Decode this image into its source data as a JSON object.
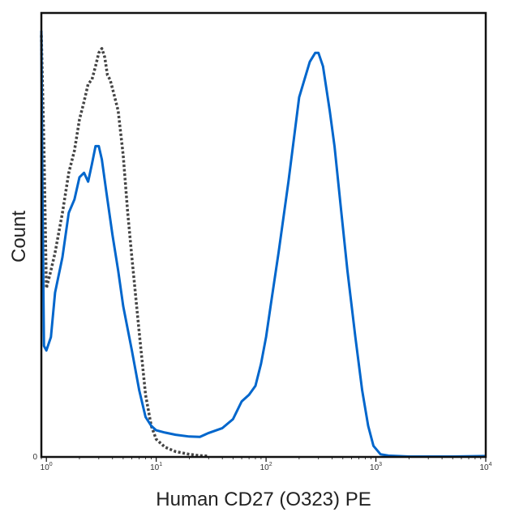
{
  "chart_data": {
    "type": "line",
    "title": "",
    "xlabel": "Human CD27 (O323) PE",
    "ylabel": "Count",
    "x_scale": "log",
    "xlim": [
      0.9,
      10000
    ],
    "ylim": [
      0,
      100
    ],
    "x_ticks": [
      {
        "value": 1,
        "base": "10",
        "exp": "0"
      },
      {
        "value": 10,
        "base": "10",
        "exp": "1"
      },
      {
        "value": 100,
        "base": "10",
        "exp": "2"
      },
      {
        "value": 1000,
        "base": "10",
        "exp": "3"
      },
      {
        "value": 10000,
        "base": "10",
        "exp": "4"
      }
    ],
    "y_ticks": [
      {
        "value": 0,
        "label": "0"
      }
    ],
    "grid": false,
    "series": [
      {
        "color": "#0066cc",
        "dash": "solid",
        "points": [
          [
            0.9,
            96
          ],
          [
            0.92,
            60
          ],
          [
            0.95,
            25
          ],
          [
            1.0,
            24
          ],
          [
            1.1,
            27
          ],
          [
            1.2,
            37
          ],
          [
            1.4,
            45
          ],
          [
            1.6,
            55
          ],
          [
            1.8,
            58
          ],
          [
            2.0,
            63
          ],
          [
            2.2,
            64
          ],
          [
            2.4,
            62
          ],
          [
            2.6,
            66
          ],
          [
            2.8,
            70
          ],
          [
            3.0,
            70
          ],
          [
            3.2,
            67
          ],
          [
            3.5,
            60
          ],
          [
            4.0,
            50
          ],
          [
            4.5,
            42
          ],
          [
            5.0,
            34
          ],
          [
            6.0,
            24
          ],
          [
            7.0,
            15
          ],
          [
            8.0,
            9
          ],
          [
            9.0,
            7
          ],
          [
            10.0,
            6
          ],
          [
            12,
            5.5
          ],
          [
            15,
            5
          ],
          [
            20,
            4.6
          ],
          [
            25,
            4.5
          ],
          [
            30,
            5.4
          ],
          [
            40,
            6.5
          ],
          [
            50,
            8.5
          ],
          [
            60,
            12.5
          ],
          [
            70,
            14
          ],
          [
            80,
            16
          ],
          [
            90,
            21
          ],
          [
            100,
            27
          ],
          [
            110,
            34
          ],
          [
            130,
            46
          ],
          [
            160,
            62
          ],
          [
            200,
            81
          ],
          [
            250,
            89
          ],
          [
            280,
            91
          ],
          [
            300,
            91
          ],
          [
            330,
            88
          ],
          [
            380,
            78
          ],
          [
            420,
            70
          ],
          [
            480,
            56
          ],
          [
            550,
            42
          ],
          [
            650,
            27
          ],
          [
            750,
            15
          ],
          [
            850,
            7
          ],
          [
            950,
            2.5
          ],
          [
            1100,
            0.6
          ],
          [
            1300,
            0.3
          ],
          [
            2000,
            0.1
          ],
          [
            5000,
            0.1
          ],
          [
            10000,
            0.2
          ]
        ]
      },
      {
        "color": "#444444",
        "dash": "dotted",
        "points": [
          [
            0.9,
            95
          ],
          [
            0.95,
            70
          ],
          [
            1.0,
            38
          ],
          [
            1.1,
            42
          ],
          [
            1.2,
            46
          ],
          [
            1.4,
            55
          ],
          [
            1.6,
            64
          ],
          [
            1.8,
            69
          ],
          [
            2.0,
            76
          ],
          [
            2.2,
            80
          ],
          [
            2.4,
            84
          ],
          [
            2.6,
            85
          ],
          [
            2.8,
            88
          ],
          [
            3.0,
            91
          ],
          [
            3.2,
            92
          ],
          [
            3.4,
            90
          ],
          [
            3.6,
            86
          ],
          [
            3.8,
            85
          ],
          [
            4.0,
            83
          ],
          [
            4.5,
            78
          ],
          [
            5.0,
            68
          ],
          [
            5.5,
            55
          ],
          [
            6.0,
            45
          ],
          [
            7.0,
            28
          ],
          [
            8.0,
            14
          ],
          [
            9.0,
            7
          ],
          [
            10,
            4
          ],
          [
            12,
            2.2
          ],
          [
            15,
            1.2
          ],
          [
            20,
            0.6
          ],
          [
            25,
            0.3
          ],
          [
            30,
            0.2
          ]
        ]
      }
    ]
  }
}
